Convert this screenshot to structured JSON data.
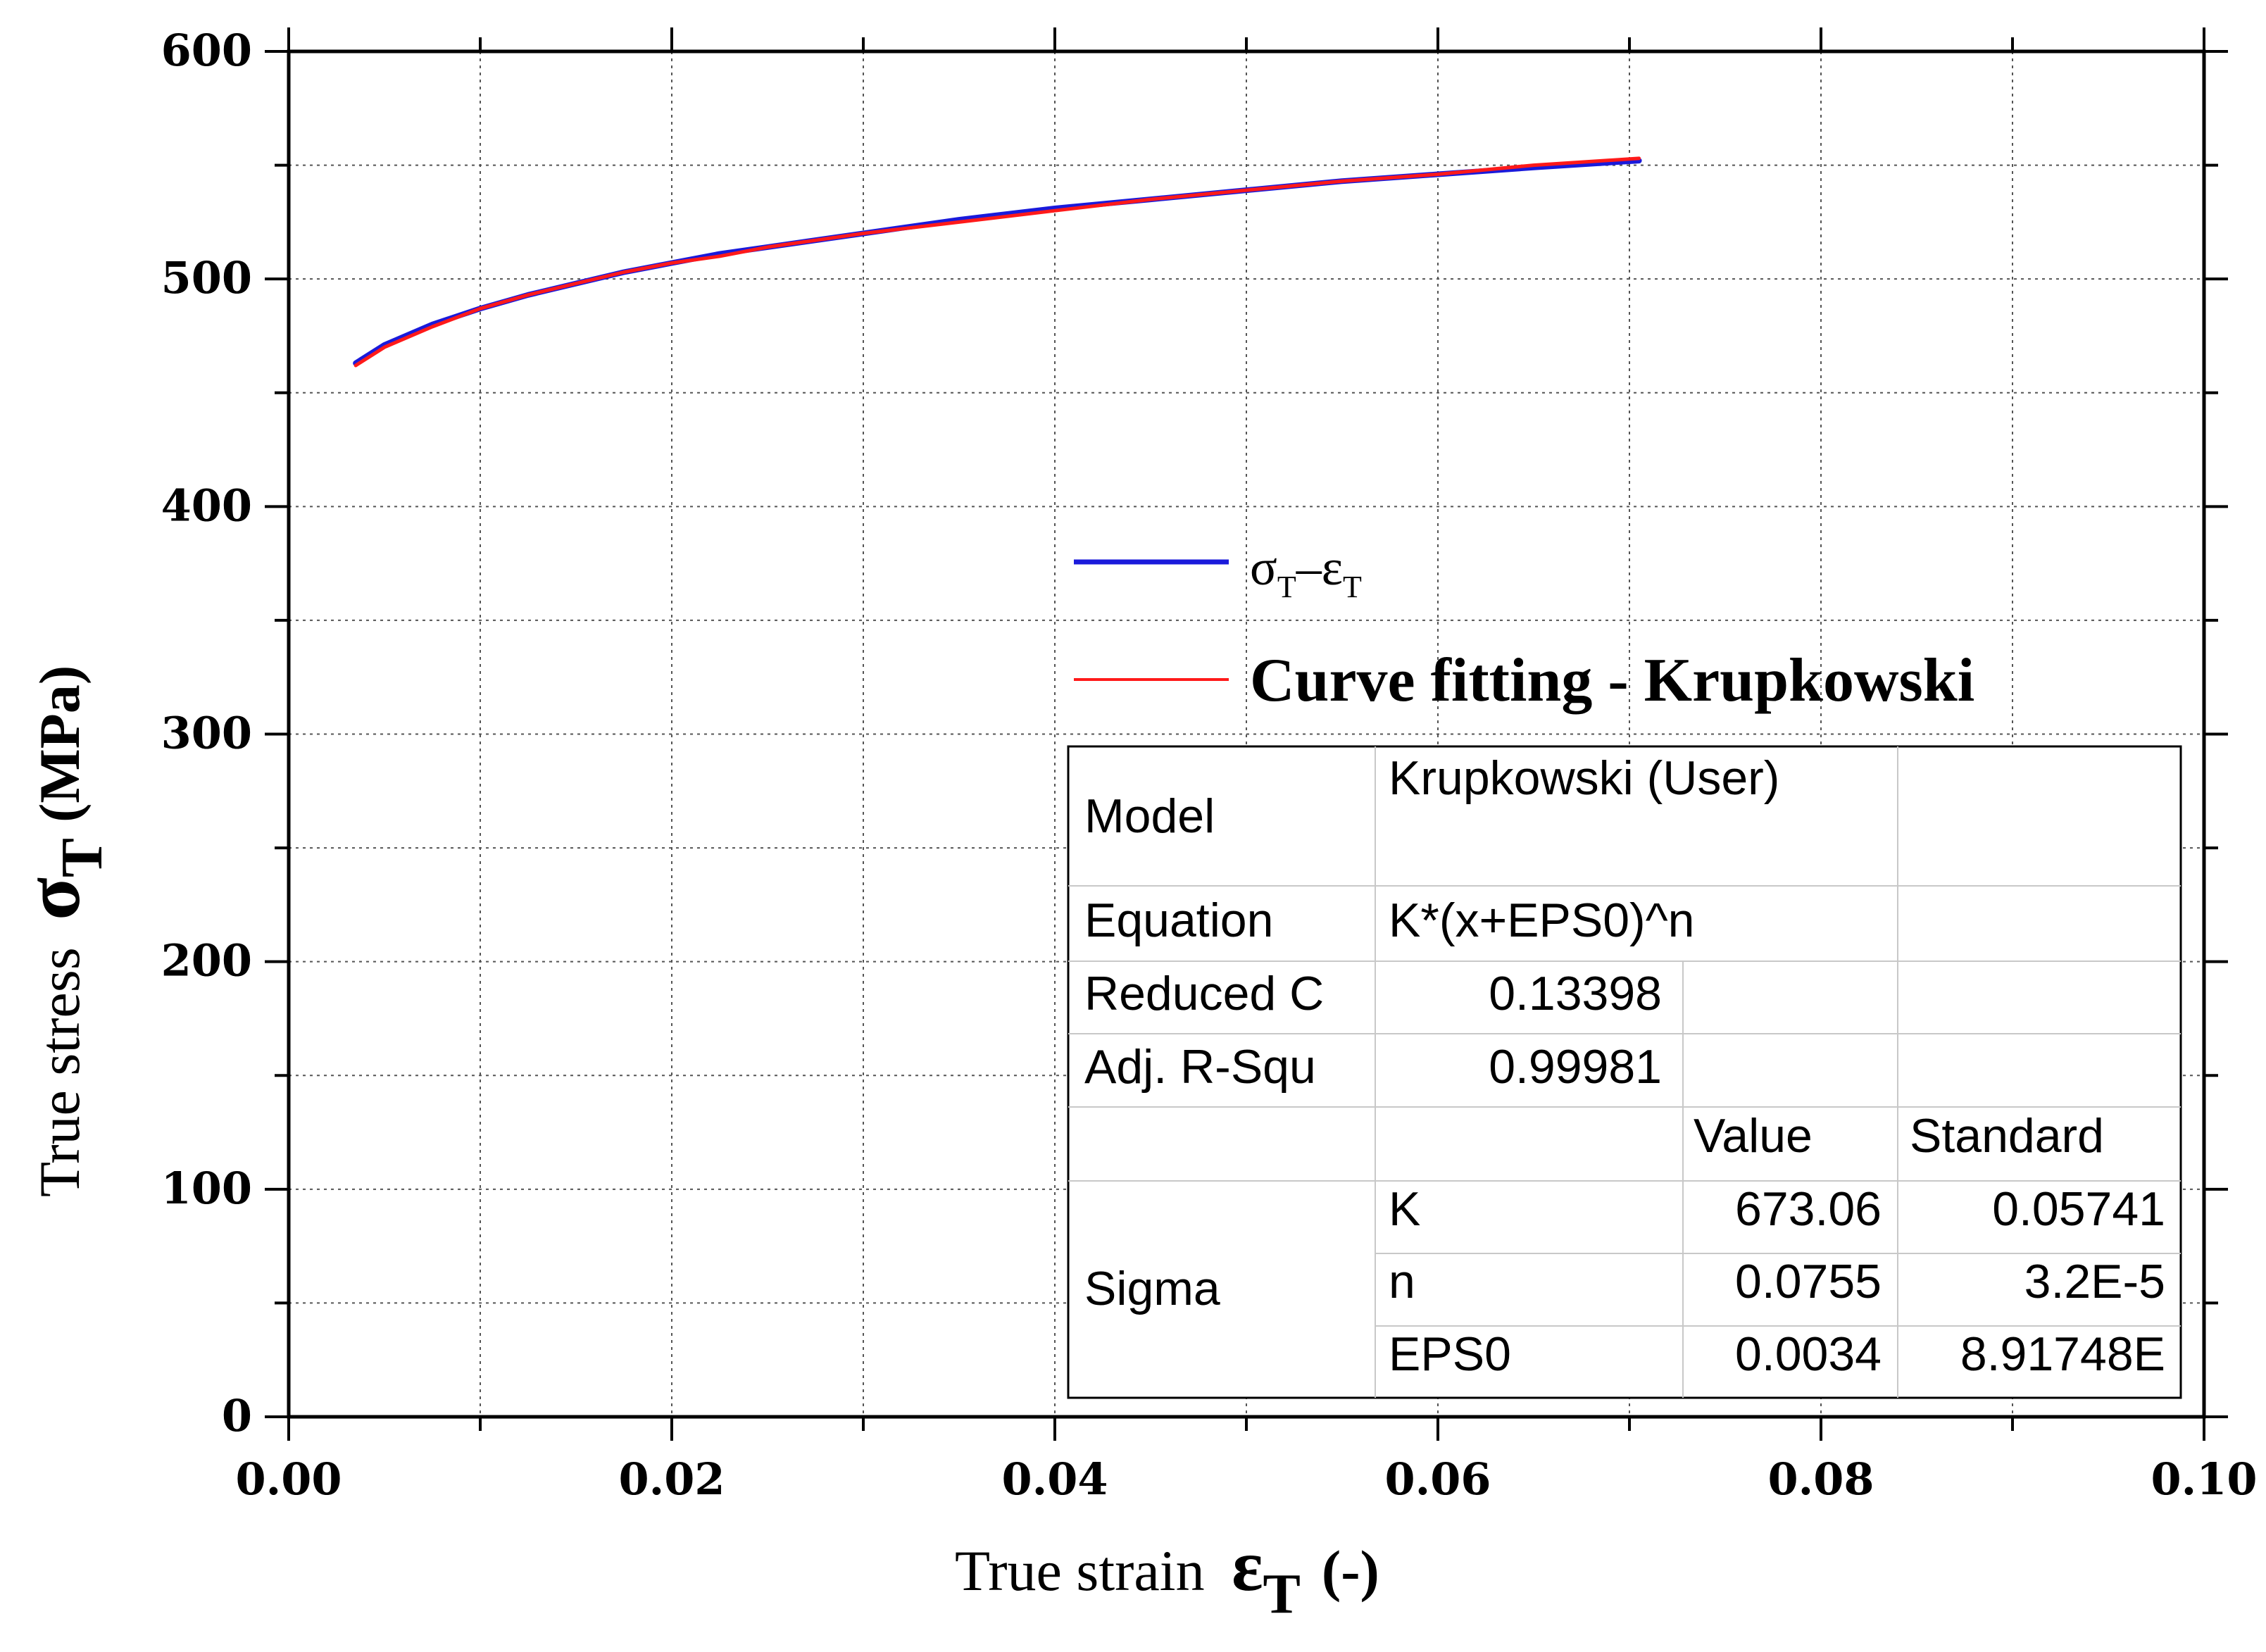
{
  "chart_data": {
    "type": "line",
    "title": "",
    "xlabel": {
      "text": "True strain",
      "symbol": "ε",
      "subscript": "T",
      "unit": "(-)"
    },
    "ylabel": {
      "text": "True stress",
      "symbol": "σ",
      "subscript": "T",
      "unit": "(MPa)"
    },
    "xlim": [
      0,
      0.1
    ],
    "ylim": [
      0,
      600
    ],
    "x_ticks": [
      0.0,
      0.02,
      0.04,
      0.06,
      0.08,
      0.1
    ],
    "x_tick_labels": [
      "0.00",
      "0.02",
      "0.04",
      "0.06",
      "0.08",
      "0.10"
    ],
    "y_ticks": [
      0,
      100,
      200,
      300,
      400,
      500,
      600
    ],
    "y_tick_labels": [
      "0",
      "100",
      "200",
      "300",
      "400",
      "500",
      "600"
    ],
    "grid": true,
    "series": [
      {
        "name": "σT–εT",
        "legend": {
          "main": "σ",
          "sub1": "T",
          "dash": "–",
          "main2": "ε",
          "sub2": "T"
        },
        "color": "#1a1adb",
        "x": [
          0.0035,
          0.005,
          0.0075,
          0.01,
          0.0125,
          0.015,
          0.0175,
          0.02,
          0.0225,
          0.025,
          0.03,
          0.035,
          0.04,
          0.045,
          0.05,
          0.055,
          0.06,
          0.065,
          0.0705
        ],
        "y": [
          463,
          471,
          480,
          487,
          493,
          498,
          503,
          507,
          511,
          514,
          520,
          526,
          531,
          535,
          539,
          543,
          546,
          549,
          552
        ]
      },
      {
        "name": "Curve fitting - Krupkowski",
        "color": "#ff1a1a",
        "x": [
          0.0035,
          0.005,
          0.0075,
          0.01,
          0.0125,
          0.015,
          0.0175,
          0.02,
          0.0225,
          0.025,
          0.03,
          0.035,
          0.04,
          0.045,
          0.05,
          0.055,
          0.06,
          0.065,
          0.0705
        ],
        "y": [
          462,
          470,
          479,
          487,
          493,
          498,
          503,
          507,
          510,
          514,
          520,
          525,
          530,
          535,
          539,
          543,
          546,
          550,
          553
        ]
      }
    ],
    "legend_position": "center-right",
    "fit_table": {
      "model_label": "Model",
      "model_value": "Krupkowski (User)",
      "equation_label": "Equation",
      "equation_value": "K*(x+EPS0)^n",
      "reduced_label": "Reduced C",
      "reduced_value": "0.13398",
      "adjr_label": "Adj. R-Squ",
      "adjr_value": "0.99981",
      "value_header": "Value",
      "std_header": "Standard",
      "group_label": "Sigma",
      "params": [
        {
          "name": "K",
          "value": "673.06",
          "std": "0.05741"
        },
        {
          "name": "n",
          "value": "0.0755",
          "std": "3.2E-5"
        },
        {
          "name": "EPS0",
          "value": "0.0034",
          "std": "8.91748E"
        }
      ]
    }
  }
}
